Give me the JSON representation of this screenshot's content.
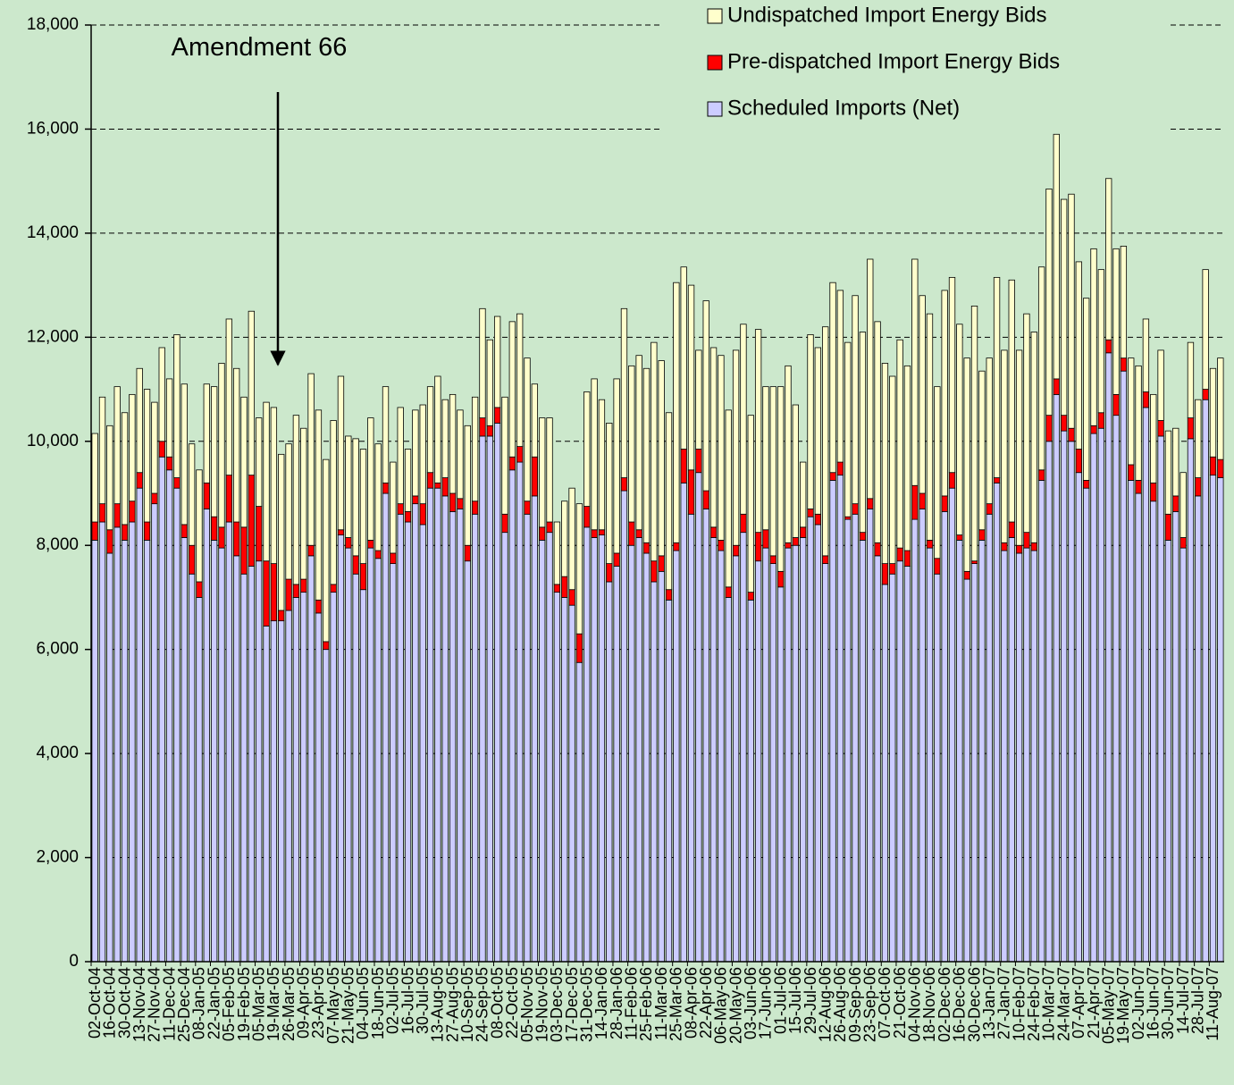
{
  "chart_data": {
    "type": "stacked_bar",
    "annotations": [
      {
        "text": "Amendment 66"
      }
    ],
    "legend": "upper right",
    "grid": true,
    "ylim": [
      0,
      18000
    ],
    "yticks": [
      0,
      {
        "value": 2000,
        "label": "2,000"
      },
      {
        "value": 4000,
        "label": "4,000"
      },
      {
        "value": 6000,
        "label": "6,000"
      },
      {
        "value": 8000,
        "label": "8,000"
      },
      {
        "value": 10000,
        "label": "10,000"
      },
      {
        "value": 12000,
        "label": "12,000"
      },
      {
        "value": 14000,
        "label": "14,000"
      },
      {
        "value": 16000,
        "label": "16,000"
      },
      {
        "value": 18000,
        "label": "18,000"
      }
    ],
    "categories": [
      "02-Oct-04",
      null,
      "16-Oct-04",
      null,
      "30-Oct-04",
      null,
      "13-Nov-04",
      null,
      "27-Nov-04",
      null,
      "11-Dec-04",
      null,
      "25-Dec-04",
      null,
      "08-Jan-05",
      null,
      "22-Jan-05",
      null,
      "05-Feb-05",
      null,
      "19-Feb-05",
      null,
      "05-Mar-05",
      null,
      "19-Mar-05",
      null,
      "26-Mar-05",
      null,
      "09-Apr-05",
      null,
      "23-Apr-05",
      null,
      "07-May-05",
      null,
      "21-May-05",
      null,
      "04-Jun-05",
      null,
      "18-Jun-05",
      null,
      "02-Jul-05",
      null,
      "16-Jul-05",
      null,
      "30-Jul-05",
      null,
      "13-Aug-05",
      null,
      "27-Aug-05",
      null,
      "10-Sep-05",
      null,
      "24-Sep-05",
      null,
      "08-Oct-05",
      null,
      "22-Oct-05",
      null,
      "05-Nov-05",
      null,
      "19-Nov-05",
      null,
      "03-Dec-05",
      null,
      "17-Dec-05",
      null,
      "31-Dec-05",
      null,
      "14-Jan-06",
      null,
      "28-Jan-06",
      null,
      "11-Feb-06",
      null,
      "25-Feb-06",
      null,
      "11-Mar-06",
      null,
      "25-Mar-06",
      null,
      "08-Apr-06",
      null,
      "22-Apr-06",
      null,
      "06-May-06",
      null,
      "20-May-06",
      null,
      "03-Jun-06",
      null,
      "17-Jun-06",
      null,
      "01-Jul-06",
      null,
      "15-Jul-06",
      null,
      "29-Jul-06",
      null,
      "12-Aug-06",
      null,
      "26-Aug-06",
      null,
      "09-Sep-06",
      null,
      "23-Sep-06",
      null,
      "07-Oct-06",
      null,
      "21-Oct-06",
      null,
      "04-Nov-06",
      null,
      "18-Nov-06",
      null,
      "02-Dec-06",
      null,
      "16-Dec-06",
      null,
      "30-Dec-06",
      null,
      "13-Jan-07",
      null,
      "27-Jan-07",
      null,
      "10-Feb-07",
      null,
      "24-Feb-07",
      null,
      "10-Mar-07",
      null,
      "24-Mar-07",
      null,
      "07-Apr-07",
      null,
      "21-Apr-07",
      null,
      "05-May-07",
      null,
      "19-May-07",
      null,
      "02-Jun-07",
      null,
      "16-Jun-07",
      null,
      "30-Jun-07",
      null,
      "14-Jul-07",
      null,
      "28-Jul-07",
      null,
      "11-Aug-07",
      null
    ],
    "series": [
      {
        "name": "Scheduled Imports (Net)",
        "color": "#ccccff",
        "values": [
          8100,
          8450,
          7850,
          8350,
          8100,
          8450,
          9100,
          8100,
          8800,
          9700,
          9450,
          9100,
          8150,
          7450,
          7000,
          8700,
          8100,
          7950,
          8450,
          7800,
          7450,
          7600,
          7700,
          6450,
          6550,
          6550,
          6750,
          7000,
          7100,
          7800,
          6700,
          6000,
          7100,
          8200,
          7950,
          7450,
          7150,
          7950,
          7750,
          9000,
          7650,
          8600,
          8450,
          8800,
          8400,
          9100,
          9100,
          8950,
          8650,
          8700,
          7700,
          8600,
          10100,
          10100,
          10350,
          8250,
          9450,
          9600,
          8600,
          8950,
          8100,
          8250,
          7100,
          7000,
          6850,
          5750,
          8350,
          8150,
          8200,
          7300,
          7600,
          9050,
          8000,
          8150,
          7850,
          7300,
          7500,
          6950,
          7900,
          9200,
          8600,
          9400,
          8700,
          8150,
          7900,
          7000,
          7800,
          8250,
          6950,
          7700,
          7950,
          7650,
          7200,
          7950,
          8000,
          8150,
          8550,
          8400,
          7650,
          9250,
          9350,
          8500,
          8600,
          8100,
          8700,
          7800,
          7250,
          7450,
          7700,
          7600,
          8500,
          8700,
          7950,
          7450,
          8650,
          9100,
          8100,
          7350,
          7650,
          8100,
          8600,
          9200,
          7900,
          8150,
          7850,
          7950,
          7900,
          9250,
          10000,
          10900,
          10200,
          10000,
          9400,
          9100,
          10150,
          10250,
          11700,
          10500,
          11350,
          9250,
          9000,
          10650,
          8850,
          10100,
          8100,
          8650,
          7950,
          10050,
          8950,
          10800,
          9350,
          9300
        ]
      },
      {
        "name": "Pre-dispatched Import Energy Bids",
        "color": "#ff0000",
        "values": [
          350,
          350,
          450,
          450,
          300,
          400,
          300,
          350,
          200,
          300,
          250,
          200,
          250,
          550,
          300,
          500,
          450,
          400,
          900,
          650,
          900,
          1750,
          1050,
          1250,
          1100,
          200,
          600,
          250,
          250,
          200,
          250,
          150,
          150,
          100,
          200,
          350,
          500,
          150,
          150,
          200,
          200,
          200,
          200,
          150,
          400,
          300,
          100,
          350,
          350,
          200,
          300,
          250,
          350,
          200,
          300,
          350,
          250,
          300,
          250,
          750,
          250,
          200,
          150,
          400,
          300,
          550,
          400,
          150,
          100,
          350,
          250,
          250,
          450,
          150,
          200,
          400,
          300,
          200,
          150,
          650,
          850,
          450,
          350,
          200,
          200,
          200,
          200,
          350,
          150,
          550,
          350,
          150,
          300,
          100,
          150,
          200,
          150,
          200,
          150,
          150,
          250,
          50,
          200,
          150,
          200,
          250,
          400,
          200,
          250,
          300,
          650,
          300,
          150,
          300,
          300,
          300,
          100,
          150,
          50,
          200,
          200,
          100,
          150,
          300,
          150,
          300,
          150,
          200,
          500,
          300,
          300,
          250,
          450,
          150,
          150,
          300,
          250,
          400,
          250,
          300,
          250,
          300,
          350,
          300,
          500,
          300,
          200,
          400,
          350,
          200,
          350,
          350
        ]
      },
      {
        "name": "Undispatched Import Energy Bids",
        "color": "#ffffcc",
        "values": [
          1700,
          2050,
          2000,
          2250,
          2150,
          2050,
          2000,
          2550,
          1750,
          1800,
          1500,
          2750,
          2700,
          1950,
          2150,
          1900,
          2500,
          3150,
          3000,
          2950,
          2500,
          3150,
          1700,
          3050,
          3000,
          3000,
          2600,
          3250,
          2900,
          3300,
          3650,
          3500,
          3150,
          2950,
          1950,
          2250,
          2200,
          2350,
          2050,
          1850,
          1750,
          1850,
          1200,
          1650,
          1900,
          1650,
          2050,
          1500,
          1900,
          1700,
          2300,
          2000,
          2100,
          1650,
          1750,
          2250,
          2600,
          2550,
          2750,
          1400,
          2100,
          2000,
          1200,
          1450,
          1950,
          2500,
          2200,
          2900,
          2500,
          2700,
          3350,
          3250,
          3000,
          3350,
          3350,
          4200,
          3750,
          3400,
          5000,
          3500,
          3550,
          1900,
          3650,
          3450,
          3550,
          3400,
          3750,
          3650,
          3400,
          3900,
          2750,
          3250,
          3550,
          3400,
          2550,
          1250,
          3350,
          3200,
          4400,
          3650,
          3300,
          3350,
          4000,
          3850,
          4600,
          4250,
          3850,
          3600,
          4000,
          3550,
          4350,
          3800,
          4350,
          3300,
          3950,
          3750,
          4050,
          4100,
          4900,
          3050,
          2800,
          3850,
          3700,
          4650,
          3750,
          4200,
          4050,
          3900,
          4350,
          4700,
          4150,
          4500,
          3600,
          3500,
          3400,
          2750,
          3100,
          2800,
          2150,
          2050,
          2200,
          1400,
          1700,
          1350,
          1600,
          1300,
          1250,
          1450,
          1500,
          2300,
          1700,
          1950
        ]
      }
    ]
  }
}
